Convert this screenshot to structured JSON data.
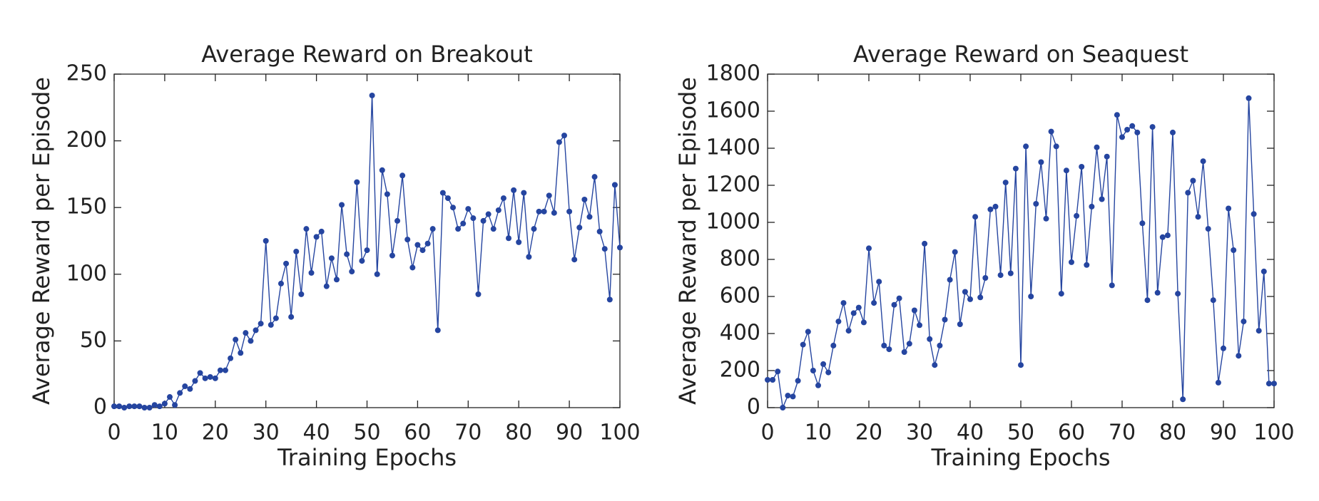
{
  "chart_data": [
    {
      "type": "line",
      "title": "Average Reward on Breakout",
      "xlabel": "Training Epochs",
      "ylabel": "Average Reward per Episode",
      "color": "#2545a0",
      "x": [
        0,
        1,
        2,
        3,
        4,
        5,
        6,
        7,
        8,
        9,
        10,
        11,
        12,
        13,
        14,
        15,
        16,
        17,
        18,
        19,
        20,
        21,
        22,
        23,
        24,
        25,
        26,
        27,
        28,
        29,
        30,
        31,
        32,
        33,
        34,
        35,
        36,
        37,
        38,
        39,
        40,
        41,
        42,
        43,
        44,
        45,
        46,
        47,
        48,
        49,
        50,
        51,
        52,
        53,
        54,
        55,
        56,
        57,
        58,
        59,
        60,
        61,
        62,
        63,
        64,
        65,
        66,
        67,
        68,
        69,
        70,
        71,
        72,
        73,
        74,
        75,
        76,
        77,
        78,
        79,
        80,
        81,
        82,
        83,
        84,
        85,
        86,
        87,
        88,
        89,
        90,
        91,
        92,
        93,
        94,
        95,
        96,
        97,
        98,
        99,
        100
      ],
      "values": [
        1,
        1,
        0,
        1,
        1,
        1,
        0,
        0,
        2,
        1,
        3,
        8,
        2,
        11,
        16,
        14,
        20,
        26,
        22,
        23,
        22,
        28,
        28,
        37,
        51,
        41,
        56,
        50,
        58,
        63,
        125,
        62,
        67,
        93,
        108,
        68,
        117,
        85,
        134,
        101,
        128,
        132,
        91,
        112,
        96,
        152,
        115,
        102,
        169,
        110,
        118,
        234,
        100,
        178,
        160,
        114,
        140,
        174,
        126,
        105,
        122,
        118,
        123,
        134,
        58,
        161,
        157,
        150,
        134,
        138,
        149,
        142,
        85,
        140,
        145,
        134,
        148,
        157,
        127,
        163,
        124,
        161,
        113,
        134,
        147,
        147,
        159,
        146,
        199,
        204,
        147,
        111,
        135,
        156,
        143,
        173,
        132,
        119,
        81,
        167,
        120
      ],
      "xlim": [
        0,
        100
      ],
      "xticks": [
        0,
        10,
        20,
        30,
        40,
        50,
        60,
        70,
        80,
        90,
        100
      ],
      "ylim": [
        0,
        250
      ],
      "yticks": [
        0,
        50,
        100,
        150,
        200,
        250
      ]
    },
    {
      "type": "line",
      "title": "Average Reward on Seaquest",
      "xlabel": "Training Epochs",
      "ylabel": "Average Reward per Episode",
      "color": "#2545a0",
      "x": [
        0,
        1,
        2,
        3,
        4,
        5,
        6,
        7,
        8,
        9,
        10,
        11,
        12,
        13,
        14,
        15,
        16,
        17,
        18,
        19,
        20,
        21,
        22,
        23,
        24,
        25,
        26,
        27,
        28,
        29,
        30,
        31,
        32,
        33,
        34,
        35,
        36,
        37,
        38,
        39,
        40,
        41,
        42,
        43,
        44,
        45,
        46,
        47,
        48,
        49,
        50,
        51,
        52,
        53,
        54,
        55,
        56,
        57,
        58,
        59,
        60,
        61,
        62,
        63,
        64,
        65,
        66,
        67,
        68,
        69,
        70,
        71,
        72,
        73,
        74,
        75,
        76,
        77,
        78,
        79,
        80,
        81,
        82,
        83,
        84,
        85,
        86,
        87,
        88,
        89,
        90,
        91,
        92,
        93,
        94,
        95,
        96,
        97,
        98,
        99,
        100
      ],
      "values": [
        150,
        150,
        195,
        0,
        65,
        60,
        145,
        340,
        410,
        200,
        120,
        235,
        190,
        335,
        465,
        565,
        415,
        510,
        540,
        460,
        860,
        565,
        680,
        335,
        315,
        555,
        590,
        300,
        345,
        525,
        445,
        885,
        370,
        230,
        335,
        475,
        690,
        840,
        450,
        625,
        585,
        1030,
        595,
        700,
        1070,
        1085,
        715,
        1215,
        725,
        1290,
        230,
        1410,
        600,
        1100,
        1325,
        1020,
        1490,
        1410,
        615,
        1280,
        785,
        1035,
        1300,
        770,
        1085,
        1405,
        1125,
        1355,
        660,
        1580,
        1460,
        1500,
        1520,
        1485,
        995,
        580,
        1515,
        620,
        920,
        930,
        1485,
        615,
        45,
        1160,
        1225,
        1030,
        1330,
        965,
        580,
        135,
        320,
        1075,
        850,
        280,
        465,
        1670,
        1045,
        415,
        735,
        130,
        130
      ],
      "xlim": [
        0,
        100
      ],
      "xticks": [
        0,
        10,
        20,
        30,
        40,
        50,
        60,
        70,
        80,
        90,
        100
      ],
      "ylim": [
        0,
        1800
      ],
      "yticks": [
        0,
        200,
        400,
        600,
        800,
        1000,
        1200,
        1400,
        1600,
        1800
      ]
    }
  ]
}
